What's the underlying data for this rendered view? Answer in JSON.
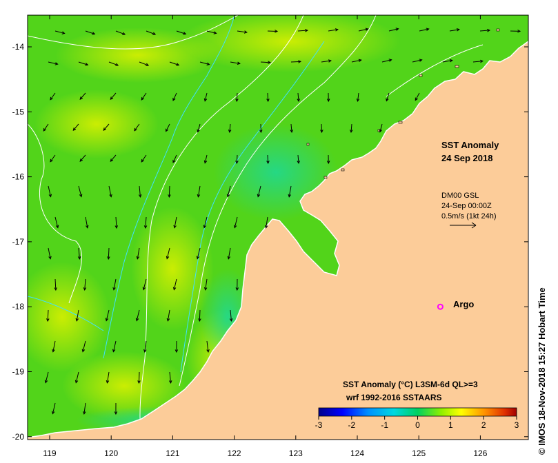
{
  "map": {
    "title_line1": "SST Anomaly",
    "title_line2": "24 Sep 2018",
    "x_ticks": [
      "119",
      "120",
      "121",
      "122",
      "123",
      "124",
      "125",
      "126"
    ],
    "y_ticks": [
      "-14",
      "-15",
      "-16",
      "-17",
      "-18",
      "-19",
      "-20"
    ],
    "lon_range": [
      118.6,
      126.7
    ],
    "lat_range": [
      -20.1,
      -13.5
    ],
    "current_legend": {
      "line1": "DM00 GSL",
      "line2": "24-Sep 00:00Z",
      "line3": "0.5m/s (1kt 24h)"
    },
    "argo": {
      "label": "Argo",
      "lon": 125.35,
      "lat": -18.0,
      "color": "#ff00ff"
    },
    "colorbar": {
      "title_line1": "SST Anomaly (°C) L3SM-6d QL>=3",
      "title_line2": "wrf 1992-2016 SSTAARS",
      "ticks": [
        "-3",
        "-2",
        "-1",
        "0",
        "1",
        "2",
        "3"
      ],
      "colors": [
        "#00008b",
        "#0000ff",
        "#0080ff",
        "#00c8ff",
        "#00e0b0",
        "#00d060",
        "#40e000",
        "#a0f000",
        "#ffff00",
        "#ffc000",
        "#ff8000",
        "#e03000",
        "#a00000"
      ]
    },
    "land_color": "#fccc99",
    "ocean_color": "#52d41a",
    "copyright": "© IMOS 18-Nov-2018 15:27 Hobart Time"
  }
}
